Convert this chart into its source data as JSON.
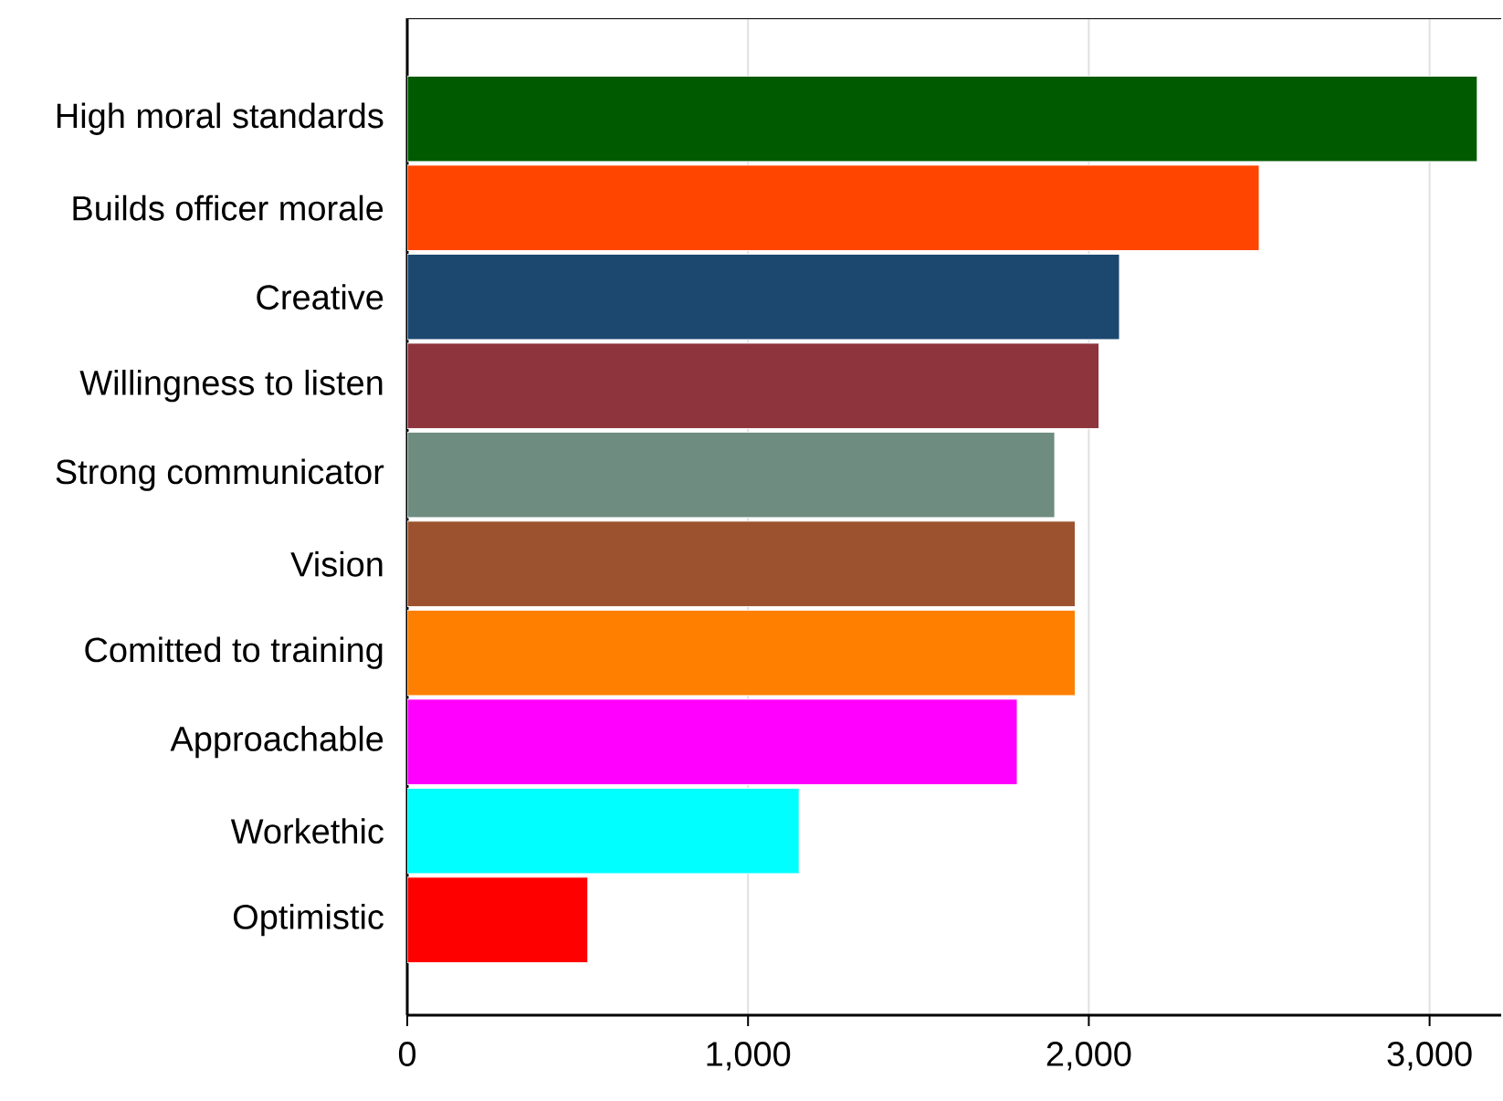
{
  "chart_data": {
    "type": "bar",
    "orientation": "horizontal",
    "categories": [
      "High moral standards",
      "Builds officer morale",
      "Creative",
      "Willingness to listen",
      "Strong communicator",
      "Vision",
      "Comitted to training",
      "Approachable",
      "Workethic",
      "Optimistic"
    ],
    "values": [
      3140,
      2500,
      2090,
      2030,
      1900,
      1960,
      1960,
      1790,
      1150,
      530
    ],
    "colors": [
      "#005a00",
      "#ff4500",
      "#1c4870",
      "#8e343d",
      "#6e8c80",
      "#9c522e",
      "#ff7f00",
      "#ff00ff",
      "#00ffff",
      "#ff0000"
    ],
    "xlim": [
      0,
      3210
    ],
    "xticks": [
      0,
      {
        "value": 1000,
        "label": "1,000"
      },
      {
        "value": 2000,
        "label": "2,000"
      },
      {
        "value": 3000,
        "label": "3,000"
      }
    ],
    "grid": "x"
  }
}
